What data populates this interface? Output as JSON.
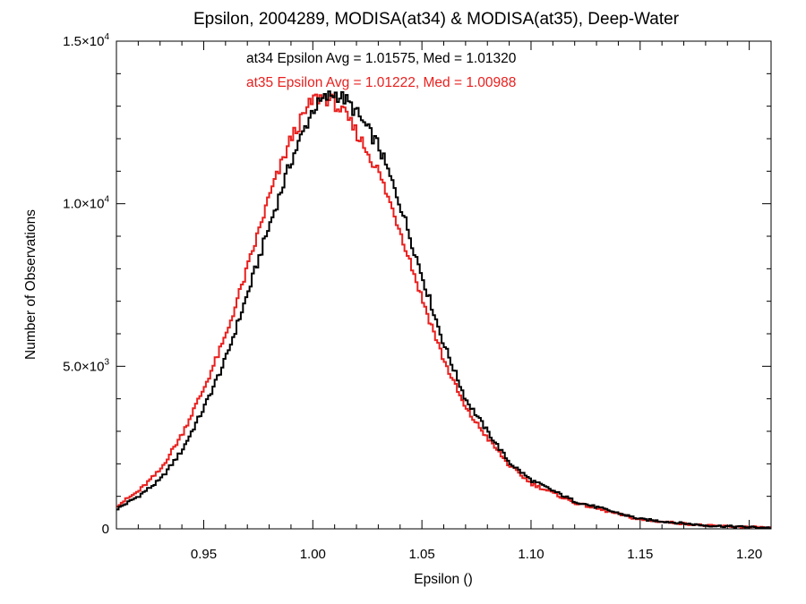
{
  "chart_data": {
    "type": "line",
    "title": "Epsilon, 2004289, MODISA(at34) & MODISA(at35), Deep-Water",
    "xlabel": "Epsilon ()",
    "ylabel": "Number of Observations",
    "xlim": [
      0.91,
      1.21
    ],
    "ylim": [
      0,
      15000
    ],
    "x_ticks": [
      {
        "value": 0.95,
        "label": "0.95"
      },
      {
        "value": 1.0,
        "label": "1.00"
      },
      {
        "value": 1.05,
        "label": "1.05"
      },
      {
        "value": 1.1,
        "label": "1.10"
      },
      {
        "value": 1.15,
        "label": "1.15"
      },
      {
        "value": 1.2,
        "label": "1.20"
      }
    ],
    "y_ticks": [
      {
        "value": 0,
        "mantissa": "0",
        "exponent": ""
      },
      {
        "value": 5000,
        "mantissa": "5.0×10",
        "exponent": "3"
      },
      {
        "value": 10000,
        "mantissa": "1.0×10",
        "exponent": "4"
      },
      {
        "value": 15000,
        "mantissa": "1.5×10",
        "exponent": "4"
      }
    ],
    "grid": false,
    "step": true,
    "annotations": [
      {
        "text": "at34 Epsilon Avg = 1.01575, Med = 1.01320",
        "color": "#000000"
      },
      {
        "text": "at35 Epsilon Avg = 1.01222, Med = 1.00988",
        "color": "#e8201e"
      }
    ],
    "series": [
      {
        "color": "#000000",
        "x": [
          0.91,
          0.92,
          0.93,
          0.94,
          0.95,
          0.96,
          0.97,
          0.98,
          0.99,
          1.0,
          1.005,
          1.01,
          1.015,
          1.02,
          1.03,
          1.04,
          1.05,
          1.06,
          1.07,
          1.08,
          1.09,
          1.1,
          1.12,
          1.15,
          1.18,
          1.21
        ],
        "y": [
          600,
          1000,
          1500,
          2400,
          3700,
          5200,
          7200,
          9300,
          11300,
          12900,
          13200,
          13400,
          13200,
          12800,
          11800,
          10000,
          7800,
          5700,
          4000,
          3000,
          2050,
          1500,
          850,
          300,
          100,
          30
        ]
      },
      {
        "color": "#e8201e",
        "x": [
          0.91,
          0.92,
          0.93,
          0.94,
          0.95,
          0.96,
          0.97,
          0.98,
          0.99,
          1.0,
          1.005,
          1.01,
          1.015,
          1.02,
          1.03,
          1.04,
          1.05,
          1.06,
          1.07,
          1.08,
          1.09,
          1.1,
          1.12,
          1.15,
          1.18,
          1.21
        ],
        "y": [
          700,
          1150,
          1800,
          2900,
          4300,
          5900,
          8000,
          10200,
          12000,
          13200,
          13300,
          13100,
          12700,
          12200,
          11000,
          9200,
          7100,
          5200,
          3700,
          2800,
          1950,
          1400,
          800,
          280,
          100,
          30
        ]
      }
    ]
  }
}
